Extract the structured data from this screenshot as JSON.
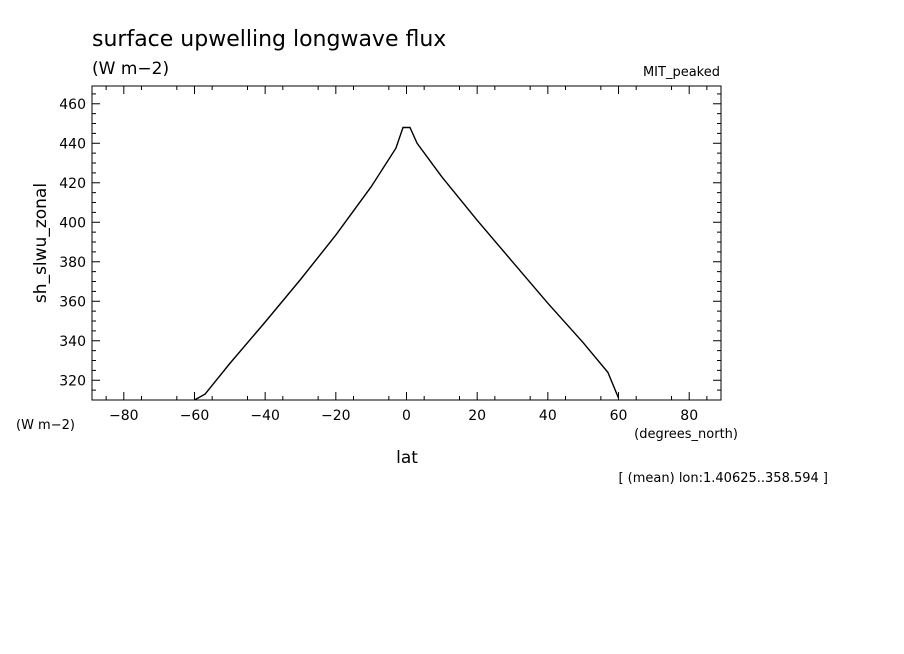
{
  "chart_data": {
    "type": "line",
    "title": "surface upwelling longwave flux",
    "subtitle": "(W m−2)",
    "tag": "MIT_peaked",
    "ylabel": "sh_slwu_zonal",
    "yunits": "(W m−2)",
    "xlabel": "lat",
    "xunits": "(degrees_north)",
    "footnote": "[ (mean) lon:1.40625..358.594 ]",
    "xlim": [
      -89,
      89
    ],
    "ylim": [
      310,
      469
    ],
    "xticks": [
      -80,
      -60,
      -40,
      -20,
      0,
      20,
      40,
      60,
      80
    ],
    "yticks": [
      320,
      340,
      360,
      380,
      400,
      420,
      440,
      460
    ],
    "grid": false,
    "series": [
      {
        "x": [
          -60,
          -57,
          -50,
          -40,
          -30,
          -20,
          -10,
          -3,
          -1,
          1,
          3,
          10,
          20,
          30,
          40,
          50,
          57,
          60
        ],
        "y": [
          310,
          313,
          328.5,
          349.5,
          371,
          393.5,
          418,
          437.5,
          448,
          448,
          440,
          423,
          401,
          380,
          359,
          339,
          324,
          311
        ]
      }
    ]
  }
}
